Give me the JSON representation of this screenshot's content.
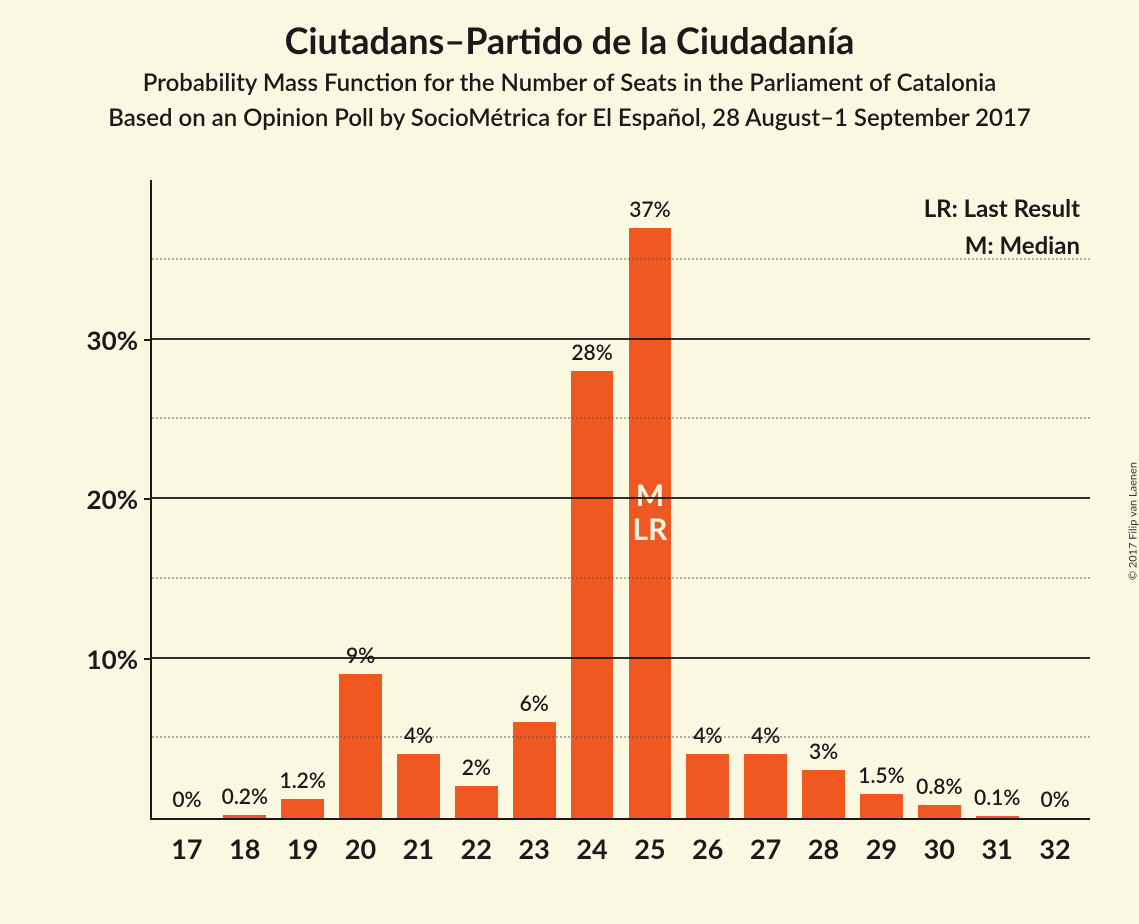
{
  "titles": {
    "main": "Ciutadans–Partido de la Ciudadanía",
    "sub1": "Probability Mass Function for the Number of Seats in the Parliament of Catalonia",
    "sub2": "Based on an Opinion Poll by SocioMétrica for El Español, 28 August–1 September 2017"
  },
  "chart": {
    "type": "bar",
    "background_color": "#fbf8e2",
    "bar_color": "#ef5821",
    "axis_color": "#1a1a1a",
    "grid_color": "#555555",
    "ymax": 40,
    "yticks": [
      10,
      20,
      30
    ],
    "ytick_labels": [
      "10%",
      "20%",
      "30%"
    ],
    "minor_grid": [
      5,
      15,
      25,
      35
    ],
    "categories": [
      "17",
      "18",
      "19",
      "20",
      "21",
      "22",
      "23",
      "24",
      "25",
      "26",
      "27",
      "28",
      "29",
      "30",
      "31",
      "32"
    ],
    "values": [
      0,
      0.2,
      1.2,
      9,
      4,
      2,
      6,
      28,
      37,
      4,
      4,
      3,
      1.5,
      0.8,
      0.1,
      0
    ],
    "value_labels": [
      "0%",
      "0.2%",
      "1.2%",
      "9%",
      "4%",
      "2%",
      "6%",
      "28%",
      "37%",
      "4%",
      "4%",
      "3%",
      "1.5%",
      "0.8%",
      "0.1%",
      "0%"
    ],
    "annotations": {
      "8": [
        "M",
        "LR"
      ]
    },
    "annotation_top_percent": 46
  },
  "legend": {
    "lr": "LR: Last Result",
    "m": "M: Median"
  },
  "copyright": "© 2017 Filip van Laenen"
}
